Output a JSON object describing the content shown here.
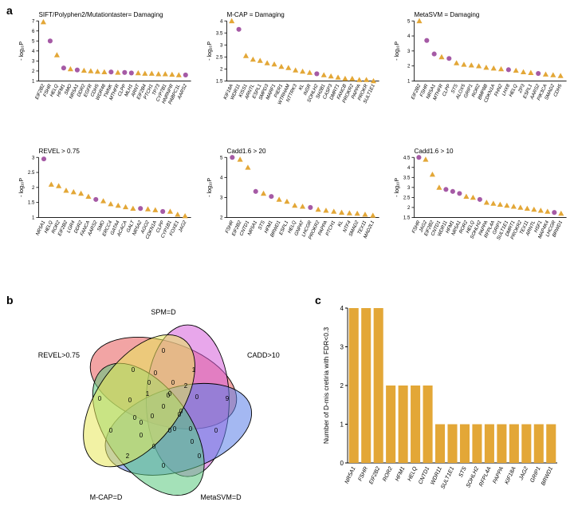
{
  "colors": {
    "orange": "#e3a737",
    "purple": "#a55aa5",
    "axis": "#000000",
    "venn_red": "#e85a5a",
    "venn_magenta": "#d65edb",
    "venn_blue": "#5a7de8",
    "venn_green": "#5ac97e",
    "venn_yellow": "#e8e85a"
  },
  "panelA": {
    "ylabel": "- log₁₀P",
    "marker_size": 3.0,
    "label_fontsize": 6,
    "charts": [
      {
        "title": "SIFT/Polyphen2/Mutationtaster= Damaging",
        "yrange": [
          1,
          7
        ],
        "yticks": [
          1,
          2,
          3,
          4,
          5,
          6,
          7
        ],
        "genes": [
          "EIF2B2",
          "FSHR",
          "HELQ",
          "HFM1",
          "SMO",
          "NR5A1",
          "DDR2",
          "EGFR",
          "CDH5",
          "WDR48",
          "TWNK",
          "MTHFR",
          "CLPP",
          "MLH1",
          "ARNT",
          "EIF2B4",
          "PTCH1",
          "TP73",
          "CYP7B1",
          "HNRNPR",
          "PABPC1L",
          "AARS2"
        ],
        "values": [
          6.9,
          5.0,
          3.6,
          2.3,
          2.2,
          2.1,
          2.05,
          2.0,
          1.95,
          1.9,
          1.9,
          1.85,
          1.85,
          1.8,
          1.8,
          1.75,
          1.75,
          1.7,
          1.7,
          1.65,
          1.6,
          1.6
        ],
        "known": [
          0,
          1,
          0,
          1,
          0,
          1,
          0,
          0,
          0,
          0,
          1,
          0,
          1,
          1,
          0,
          0,
          0,
          0,
          0,
          0,
          0,
          1
        ]
      },
      {
        "title": "M-CAP = Damaging",
        "yrange": [
          1.5,
          4.0
        ],
        "yticks": [
          1.5,
          2.0,
          2.5,
          3.0,
          3.5,
          4.0
        ],
        "genes": [
          "KIF18A",
          "WDR11",
          "KISS1",
          "ARNTL",
          "ESPL1",
          "SMPD3",
          "MARF1",
          "PIER1",
          "WTRHAM",
          "NTTRK3",
          "KL",
          "INSR",
          "SOHLH2",
          "SH2B1",
          "CASP3",
          "DMRT1",
          "FANCB",
          "PROKR2",
          "PAPPA",
          "PROKR",
          "SULT1E1"
        ],
        "values": [
          4.0,
          3.65,
          2.55,
          2.4,
          2.35,
          2.25,
          2.2,
          2.1,
          2.05,
          1.95,
          1.9,
          1.85,
          1.8,
          1.75,
          1.7,
          1.65,
          1.6,
          1.6,
          1.55,
          1.55,
          1.5
        ],
        "known": [
          0,
          1,
          0,
          0,
          0,
          0,
          0,
          0,
          0,
          0,
          0,
          0,
          1,
          0,
          0,
          0,
          0,
          0,
          0,
          0,
          0
        ]
      },
      {
        "title": "MetaSVM = Damaging",
        "yrange": [
          1,
          5
        ],
        "yticks": [
          1,
          2,
          3,
          4,
          5
        ],
        "genes": [
          "EIF2B2",
          "FSHR",
          "NR5A1",
          "MTHFR",
          "CLPP",
          "STS",
          "ALOX5",
          "GRIP1",
          "ROR2",
          "BMP8B",
          "CDKN1A",
          "FHN2",
          "LHX8",
          "HELQ",
          "ZP3",
          "ESPL1",
          "AARS2",
          "PIK3CA",
          "SMAD2",
          "CDH5"
        ],
        "values": [
          5.0,
          3.7,
          2.8,
          2.6,
          2.5,
          2.2,
          2.1,
          2.05,
          2.0,
          1.9,
          1.85,
          1.8,
          1.75,
          1.7,
          1.6,
          1.55,
          1.5,
          1.45,
          1.4,
          1.35
        ],
        "known": [
          0,
          1,
          1,
          0,
          1,
          0,
          0,
          0,
          0,
          0,
          0,
          0,
          1,
          0,
          0,
          0,
          1,
          0,
          0,
          0
        ]
      },
      {
        "title": "REVEL > 0.75",
        "yrange": [
          1,
          3
        ],
        "yticks": [
          1.0,
          1.5,
          2.0,
          2.5,
          3.0
        ],
        "genes": [
          "NR5A1",
          "HELQ",
          "ROR2",
          "EIF2B2",
          "LGR4",
          "DDR2",
          "FANCA",
          "AARS2",
          "SMO",
          "ERCC4",
          "GATA4",
          "ACACA",
          "GALT",
          "NR5A2",
          "AGO2",
          "CDKN1A",
          "CLPP",
          "CYP1B1",
          "FOXE1",
          "JAG2"
        ],
        "values": [
          2.95,
          2.1,
          2.05,
          1.9,
          1.85,
          1.8,
          1.7,
          1.6,
          1.55,
          1.45,
          1.4,
          1.35,
          1.3,
          1.3,
          1.28,
          1.25,
          1.2,
          1.2,
          1.1,
          1.05
        ],
        "known": [
          1,
          0,
          0,
          0,
          0,
          0,
          0,
          1,
          0,
          0,
          0,
          0,
          0,
          1,
          0,
          0,
          1,
          0,
          0,
          0
        ]
      },
      {
        "title": "Cadd1.6 > 20",
        "yrange": [
          2,
          5
        ],
        "yticks": [
          2,
          3,
          4,
          5
        ],
        "genes": [
          "FSHR",
          "EIF2B2",
          "CNTD1",
          "NR5A1",
          "STS",
          "HFM1",
          "BRWD1",
          "ESPL1",
          "HELQ",
          "GNPAT",
          "LHCGR",
          "PROKR2",
          "PAPPA",
          "PTCH1",
          "KL",
          "NTF4",
          "SMAD2",
          "TEX11",
          "MAD2L1"
        ],
        "values": [
          5.0,
          4.9,
          4.5,
          3.3,
          3.2,
          3.05,
          2.9,
          2.8,
          2.6,
          2.55,
          2.5,
          2.4,
          2.35,
          2.3,
          2.25,
          2.22,
          2.2,
          2.15,
          2.1
        ],
        "known": [
          1,
          0,
          0,
          1,
          0,
          1,
          0,
          0,
          0,
          0,
          1,
          0,
          0,
          0,
          0,
          0,
          0,
          0,
          0
        ]
      },
      {
        "title": "Cadd1.6 > 10",
        "yrange": [
          1.5,
          4.5
        ],
        "yticks": [
          1.5,
          2.0,
          2.5,
          3.0,
          3.5,
          4.0,
          4.5
        ],
        "genes": [
          "FSHR",
          "JAG2",
          "EIF2B2",
          "CNTD1",
          "WDR11",
          "HFM1",
          "NR5A1",
          "ROR2",
          "HELQ",
          "SOHLH2",
          "PAPPA",
          "RFPL4A",
          "GRIP1",
          "SULT1E1",
          "DMRT1",
          "PROKR2",
          "TEX11",
          "ARNTL",
          "HSF1",
          "MAP4K4",
          "LHCGR",
          "BRWD1"
        ],
        "values": [
          4.5,
          4.4,
          3.65,
          3.0,
          2.9,
          2.8,
          2.7,
          2.55,
          2.5,
          2.4,
          2.25,
          2.2,
          2.15,
          2.1,
          2.05,
          2.0,
          1.95,
          1.9,
          1.85,
          1.8,
          1.75,
          1.7
        ],
        "known": [
          1,
          0,
          0,
          0,
          1,
          1,
          1,
          0,
          0,
          1,
          0,
          0,
          0,
          0,
          0,
          0,
          0,
          0,
          0,
          0,
          1,
          0
        ]
      }
    ]
  },
  "panelB": {
    "labels": [
      "SPM=D",
      "CADD>10",
      "MetaSVM=D",
      "M-CAP=D",
      "REVEL>0.75"
    ],
    "label_fontsize": 9,
    "cell_fontsize": 8,
    "region_values": {
      "A": 0,
      "B": 9,
      "C": 0,
      "D": 2,
      "E": 0,
      "AB": 1,
      "BC": 0,
      "CD": 0,
      "DE": 0,
      "AE": 0,
      "AC": 2,
      "BD": 0,
      "CE": 0,
      "AD": 0,
      "BE": 0,
      "ABC": 0,
      "BCD": 0,
      "CDE": 0,
      "ADE": 0,
      "ABE": 0,
      "ACD": 0,
      "BDE": 0,
      "ACE": 0,
      "BCE": 0,
      "ABD": 0,
      "ABCD": 0,
      "BCDE": 0,
      "ACDE": 0,
      "ABDE": 1,
      "ABCE": 0,
      "ABCDE": 0
    }
  },
  "panelC": {
    "ylabel": "Number of D-mis cretiria with FDR<0.3",
    "yrange": [
      0,
      4
    ],
    "yticks": [
      0,
      1,
      2,
      3,
      4
    ],
    "label_fontsize": 6,
    "bar_color": "#e3a737",
    "genes": [
      "NR5A1",
      "FSHR",
      "EIF2B2",
      "ROR2",
      "HFM1",
      "HELQ",
      "CNTD1",
      "WDR11",
      "SULT1E1",
      "STS",
      "SOHLH2",
      "RFPL4A",
      "PAPPA",
      "KIF18A",
      "JAG2",
      "GRIP1",
      "BRWD1"
    ],
    "values": [
      4,
      4,
      4,
      2,
      2,
      2,
      2,
      1,
      1,
      1,
      1,
      1,
      1,
      1,
      1,
      1,
      1
    ]
  }
}
